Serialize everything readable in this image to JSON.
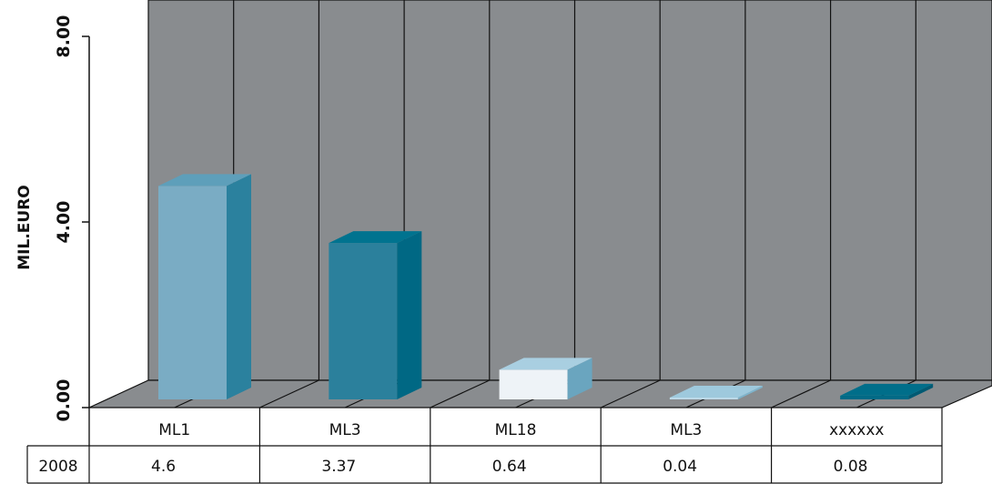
{
  "chart_data": {
    "type": "bar",
    "ylabel": "MIL.EURO",
    "ylim": [
      0,
      8
    ],
    "yticks": [
      "0.00",
      "4.00",
      "8.00"
    ],
    "categories": [
      "ML1",
      "ML3",
      "ML18",
      "ML3",
      "xxxxxx"
    ],
    "series": [
      {
        "name": "2008",
        "values": [
          4.6,
          3.37,
          0.64,
          0.04,
          0.08
        ],
        "labels": [
          "4.6",
          "3.37",
          "0.64",
          "0.04",
          "0.08"
        ]
      }
    ],
    "bar_colors": [
      {
        "front": "#7aacc4",
        "side": "#2b819e",
        "top": "#5e9fba"
      },
      {
        "front": "#2b809c",
        "side": "#006884",
        "top": "#00738f"
      },
      {
        "front": "#eef3f7",
        "side": "#6aa5bf",
        "top": "#a9cfe1"
      },
      {
        "front": "#bcd9e8",
        "side": "#7eb4cc",
        "top": "#9ec9dd"
      },
      {
        "front": "#006a86",
        "side": "#005a73",
        "top": "#006e8a"
      }
    ],
    "wall_color": "#898c8f",
    "floor_color": "#898c8f",
    "grid": true
  }
}
